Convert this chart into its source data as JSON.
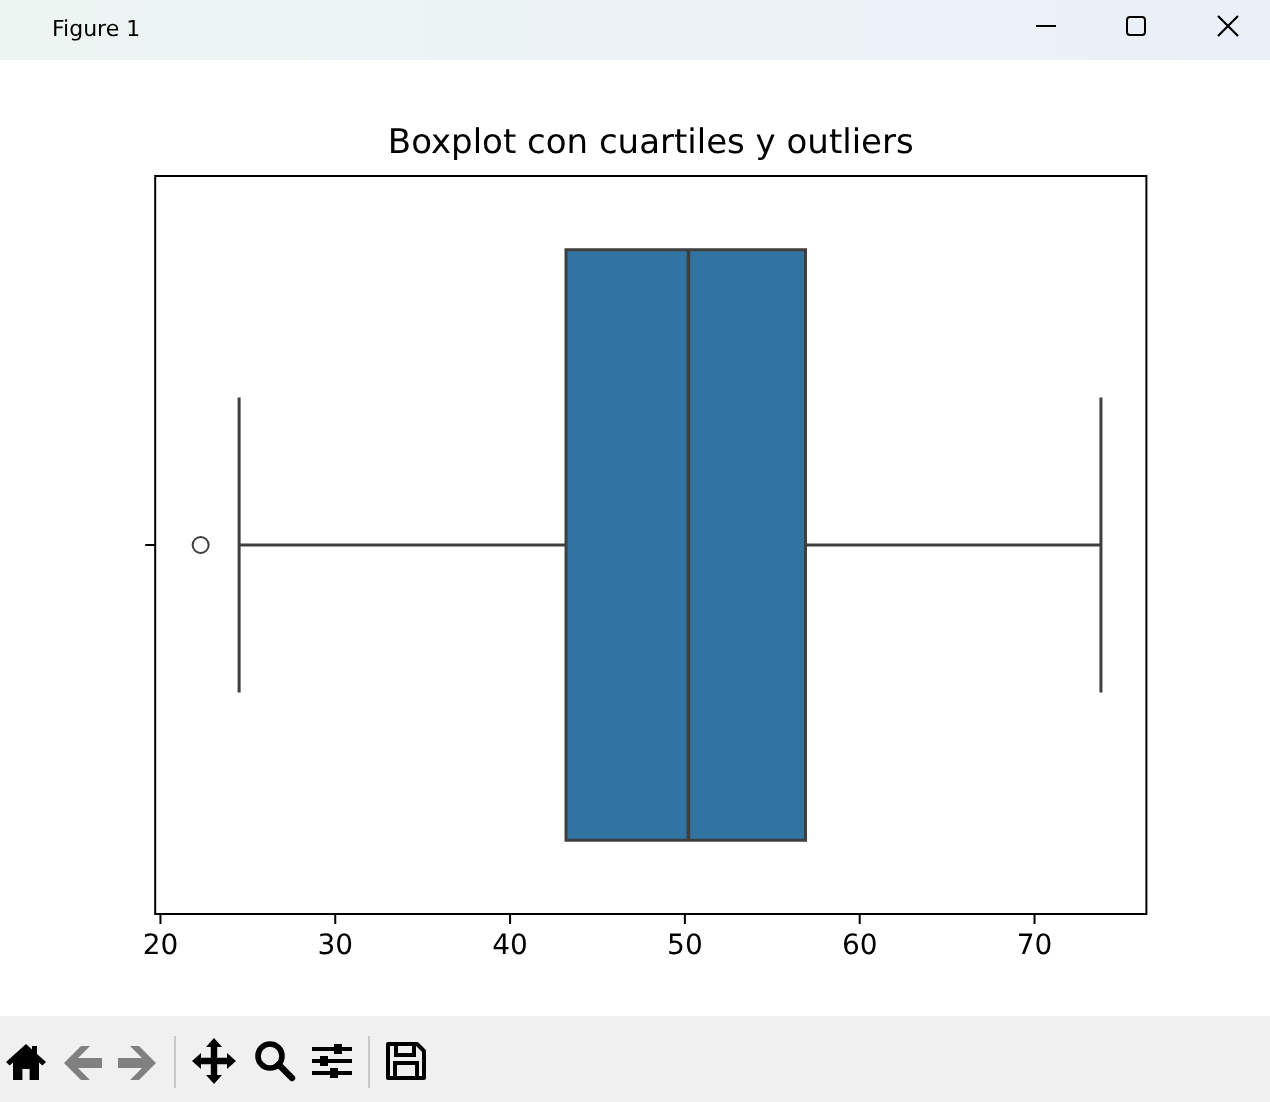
{
  "chart_data": {
    "type": "box",
    "title": "Boxplot con cuartiles y outliers",
    "orientation": "horizontal",
    "categories": [
      null
    ],
    "boxes": [
      {
        "low": 24.5,
        "q1": 43.2,
        "median": 50.2,
        "q3": 56.9,
        "high": 73.8,
        "outliers": [
          22.3
        ]
      }
    ],
    "color": "#3274a1",
    "xlim": [
      19.7,
      76.4
    ],
    "xticks": [
      20,
      30,
      40,
      50,
      60,
      70
    ],
    "tick_labels": "x",
    "grid": false,
    "legend": false,
    "marker": "circle",
    "annotations": [
      "Figure 1"
    ]
  }
}
